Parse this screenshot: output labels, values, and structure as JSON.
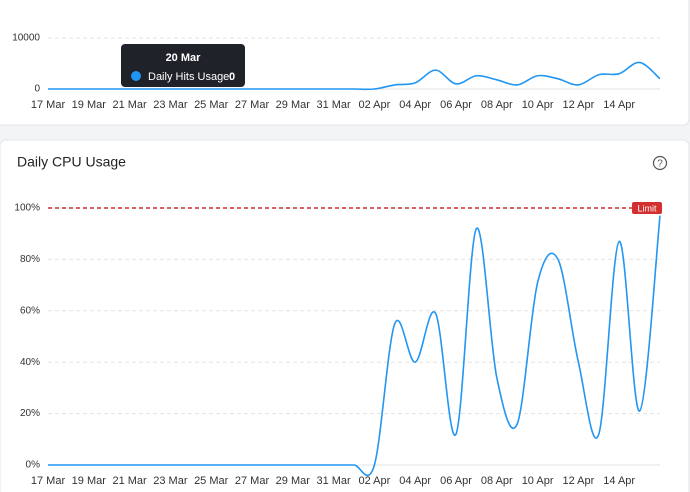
{
  "chart_data": [
    {
      "type": "line",
      "color": "#2196f3",
      "categories": [
        "17 Mar",
        null,
        "19 Mar",
        null,
        "21 Mar",
        null,
        "23 Mar",
        null,
        "25 Mar",
        null,
        "27 Mar",
        null,
        "29 Mar",
        null,
        "31 Mar",
        null,
        "02 Apr",
        null,
        "04 Apr",
        null,
        "06 Apr",
        null,
        "08 Apr",
        null,
        "10 Apr",
        null,
        "12 Apr",
        null,
        "14 Apr",
        null,
        null
      ],
      "values": [
        0,
        0,
        0,
        0,
        0,
        0,
        0,
        0,
        0,
        0,
        0,
        0,
        0,
        0,
        0,
        0,
        0,
        800,
        1200,
        3700,
        1000,
        2600,
        1800,
        800,
        2600,
        2000,
        800,
        2800,
        3000,
        5200,
        2000
      ],
      "ylim": [
        0,
        10000
      ],
      "yticks": [
        0,
        10000
      ],
      "grid": true,
      "tooltip": {
        "title": "20 Mar",
        "label": "Daily Hits Usage:",
        "value": 0
      }
    },
    {
      "type": "line",
      "title": "Daily CPU Usage",
      "color": "#2196f3",
      "categories": [
        "17 Mar",
        null,
        "19 Mar",
        null,
        "21 Mar",
        null,
        "23 Mar",
        null,
        "25 Mar",
        null,
        "27 Mar",
        null,
        "29 Mar",
        null,
        "31 Mar",
        null,
        "02 Apr",
        null,
        "04 Apr",
        null,
        "06 Apr",
        null,
        "08 Apr",
        null,
        "10 Apr",
        null,
        "12 Apr",
        null,
        "14 Apr",
        null,
        null
      ],
      "values": [
        0,
        0,
        0,
        0,
        0,
        0,
        0,
        0,
        0,
        0,
        0,
        0,
        0,
        0,
        0,
        0,
        0,
        55,
        40,
        59,
        12,
        92,
        34,
        16,
        71,
        80,
        40,
        12,
        87,
        21,
        97
      ],
      "ylim": [
        0,
        100
      ],
      "yticks": [
        {
          "value": 0,
          "label": "0%"
        },
        {
          "value": 20,
          "label": "20%"
        },
        {
          "value": 40,
          "label": "40%"
        },
        {
          "value": 60,
          "label": "60%"
        },
        {
          "value": 80,
          "label": "80%"
        },
        {
          "value": 100,
          "label": "100%"
        }
      ],
      "grid": true,
      "limit": {
        "value": 100,
        "label": "Limit",
        "color": "#d32f2f"
      }
    }
  ]
}
